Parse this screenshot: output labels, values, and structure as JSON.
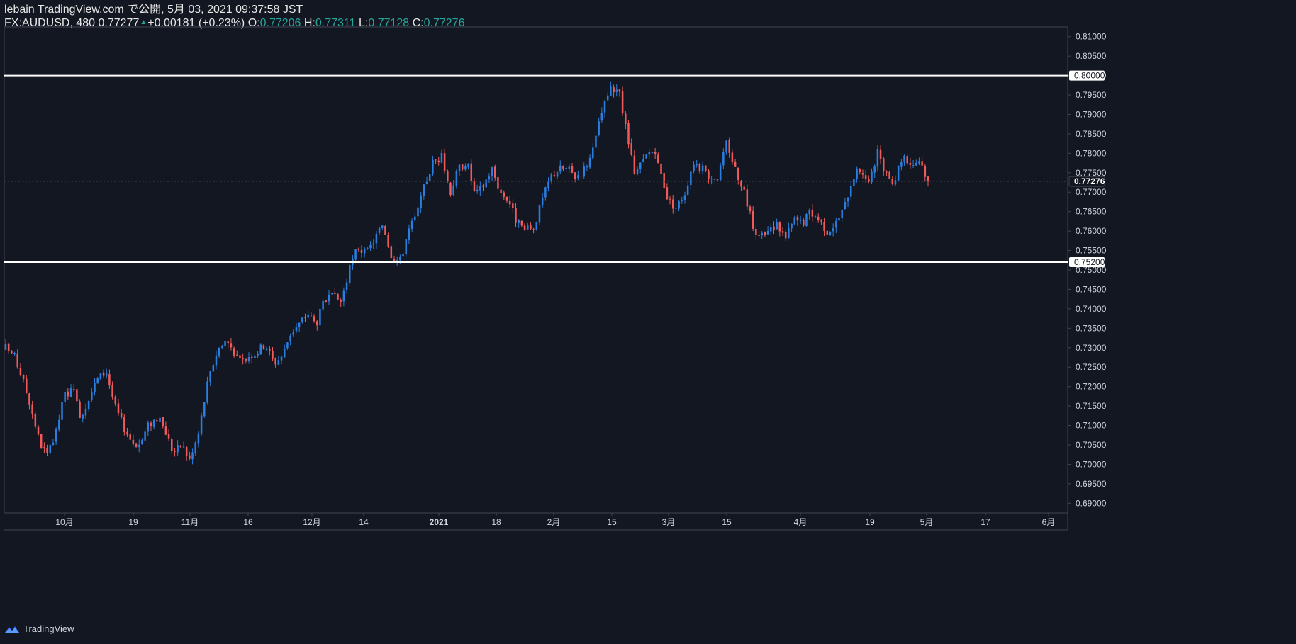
{
  "header": {
    "publish_line": "lebain TradingView.com で公開, 5月 03, 2021 09:37:58 JST",
    "symbol": "FX:AUDUSD, 480",
    "last": "0.77277",
    "change": "+0.00181 (+0.23%)",
    "o_label": "O:",
    "o_value": "0.77206",
    "h_label": "H:",
    "h_value": "0.77311",
    "l_label": "L:",
    "l_value": "0.77128",
    "c_label": "C:",
    "c_value": "0.77276"
  },
  "footer": {
    "brand": "TradingView",
    "logo_icon": "tradingview-logo-icon"
  },
  "colors": {
    "background": "#131722",
    "up": "#2a7ee0",
    "down": "#f05a5a",
    "axis_text": "#d1d4dc",
    "grid_border": "#434651",
    "level_line": "#ffffff",
    "teal": "#26a69a"
  },
  "chart_data": {
    "type": "candlestick",
    "title": "FX:AUDUSD, 480",
    "ylim": [
      0.6875,
      0.8125
    ],
    "y_ticks": [
      "0.69000",
      "0.69500",
      "0.70000",
      "0.70500",
      "0.71000",
      "0.71500",
      "0.72000",
      "0.72500",
      "0.73000",
      "0.73500",
      "0.74000",
      "0.74500",
      "0.75000",
      "0.75500",
      "0.76000",
      "0.76500",
      "0.77000",
      "0.77500",
      "0.78000",
      "0.78500",
      "0.79000",
      "0.79500",
      "0.80000",
      "0.80500",
      "0.81000"
    ],
    "x_ticks": [
      "10月",
      "19",
      "11月",
      "16",
      "12月",
      "14",
      "2021",
      "18",
      "2月",
      "15",
      "3月",
      "15",
      "4月",
      "19",
      "5月",
      "17",
      "6月"
    ],
    "horizontal_levels": [
      {
        "value": 0.8,
        "label": "0.80000"
      },
      {
        "value": 0.752,
        "label": "0.75200"
      }
    ],
    "last_price": {
      "value": 0.77276,
      "label": "0.77276"
    },
    "close_path": [
      0.73,
      0.728,
      0.722,
      0.715,
      0.706,
      0.702,
      0.708,
      0.718,
      0.719,
      0.712,
      0.718,
      0.722,
      0.724,
      0.715,
      0.71,
      0.706,
      0.705,
      0.71,
      0.712,
      0.709,
      0.703,
      0.705,
      0.701,
      0.708,
      0.72,
      0.728,
      0.732,
      0.73,
      0.726,
      0.728,
      0.729,
      0.731,
      0.726,
      0.728,
      0.734,
      0.736,
      0.739,
      0.736,
      0.742,
      0.743,
      0.742,
      0.75,
      0.756,
      0.754,
      0.758,
      0.762,
      0.754,
      0.752,
      0.76,
      0.764,
      0.772,
      0.778,
      0.779,
      0.77,
      0.776,
      0.778,
      0.769,
      0.772,
      0.776,
      0.77,
      0.768,
      0.762,
      0.76,
      0.761,
      0.768,
      0.774,
      0.776,
      0.776,
      0.774,
      0.776,
      0.78,
      0.79,
      0.796,
      0.797,
      0.786,
      0.774,
      0.778,
      0.781,
      0.776,
      0.768,
      0.766,
      0.77,
      0.778,
      0.776,
      0.774,
      0.774,
      0.783,
      0.776,
      0.771,
      0.762,
      0.758,
      0.76,
      0.762,
      0.758,
      0.763,
      0.762,
      0.765,
      0.763,
      0.76,
      0.762,
      0.766,
      0.774,
      0.776,
      0.772,
      0.78,
      0.774,
      0.773,
      0.78,
      0.777,
      0.7786,
      0.7728
    ]
  }
}
